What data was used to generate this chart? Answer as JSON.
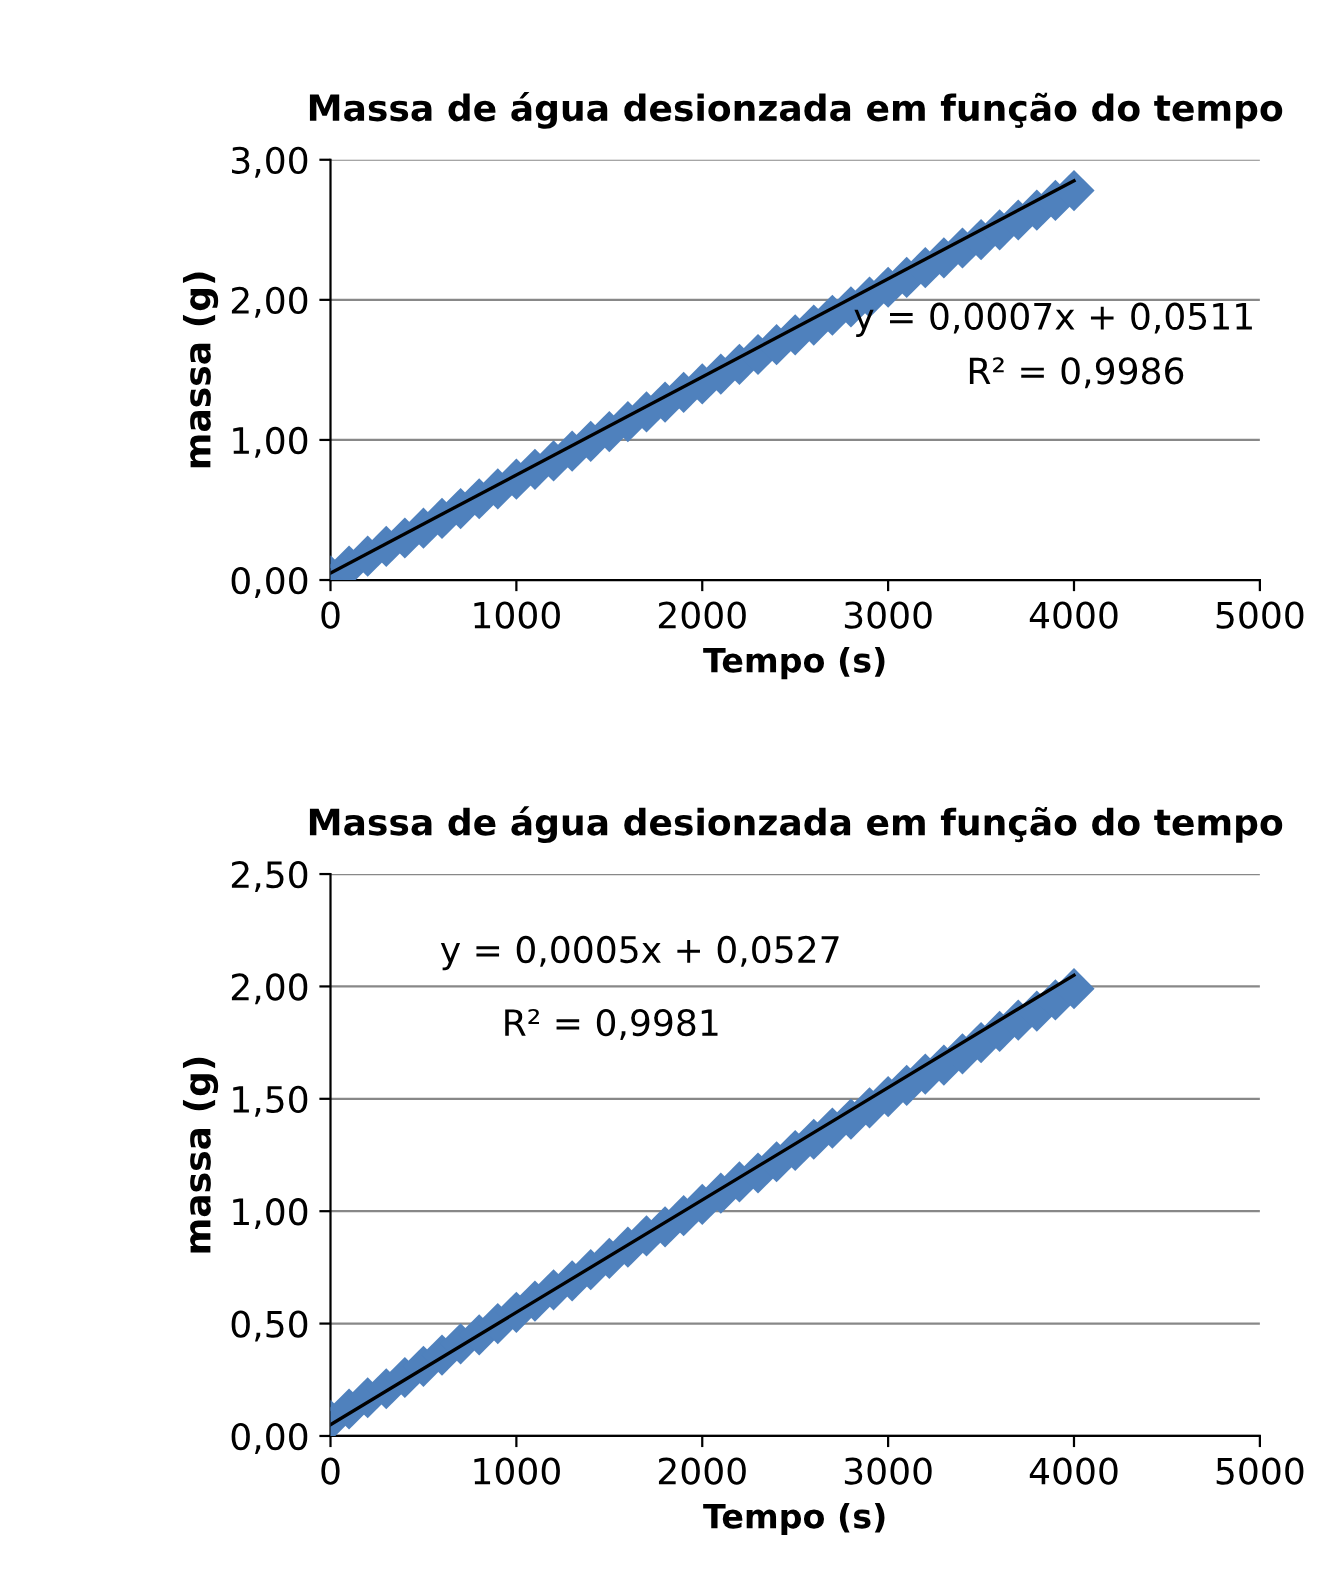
{
  "chart_data": [
    {
      "type": "scatter",
      "title": "Massa de água desionzada em função do tempo",
      "xlabel": "Tempo (s)",
      "ylabel": "massa (g)",
      "xlim": [
        0,
        5000
      ],
      "xticks": [
        0,
        1000,
        2000,
        3000,
        4000,
        5000
      ],
      "ylim": [
        0,
        3
      ],
      "yticks": [
        {
          "value": 0,
          "label": "0,00"
        },
        {
          "value": 1,
          "label": "1,00"
        },
        {
          "value": 2,
          "label": "2,00"
        },
        {
          "value": 3,
          "label": "3,00"
        }
      ],
      "grid": "y",
      "legend": false,
      "annotations": [
        "y = 0,0007x + 0,0511",
        "R² = 0,9986"
      ],
      "series": [
        {
          "marker": "diamond",
          "color": "#4f81bd",
          "x": [
            0,
            100,
            200,
            300,
            400,
            500,
            600,
            700,
            800,
            900,
            1000,
            1100,
            1200,
            1300,
            1400,
            1500,
            1600,
            1700,
            1800,
            1900,
            2000,
            2100,
            2200,
            2300,
            2400,
            2500,
            2600,
            2700,
            2800,
            2900,
            3000,
            3100,
            3200,
            3300,
            3400,
            3500,
            3600,
            3700,
            3800,
            3900,
            4000
          ],
          "values": [
            0.03,
            0.1,
            0.17,
            0.24,
            0.3,
            0.37,
            0.44,
            0.51,
            0.58,
            0.65,
            0.72,
            0.79,
            0.85,
            0.92,
            0.99,
            1.06,
            1.13,
            1.2,
            1.27,
            1.34,
            1.4,
            1.47,
            1.54,
            1.61,
            1.68,
            1.75,
            1.82,
            1.89,
            1.95,
            2.02,
            2.09,
            2.16,
            2.23,
            2.3,
            2.37,
            2.43,
            2.5,
            2.57,
            2.64,
            2.71,
            2.78
          ]
        },
        {
          "type": "line",
          "marker": "none",
          "color": "#000000",
          "x": [
            0,
            4000
          ],
          "values": [
            0.05,
            2.85
          ]
        }
      ]
    },
    {
      "type": "scatter",
      "title": "Massa de água desionzada em função do tempo",
      "xlabel": "Tempo (s)",
      "ylabel": "massa (g)",
      "xlim": [
        0,
        5000
      ],
      "xticks": [
        0,
        1000,
        2000,
        3000,
        4000,
        5000
      ],
      "ylim": [
        0,
        2.5
      ],
      "yticks": [
        {
          "value": 0,
          "label": "0,00"
        },
        {
          "value": 0.5,
          "label": "0,50"
        },
        {
          "value": 1,
          "label": "1,00"
        },
        {
          "value": 1.5,
          "label": "1,50"
        },
        {
          "value": 2,
          "label": "2,00"
        },
        {
          "value": 2.5,
          "label": "2,50"
        }
      ],
      "grid": "y",
      "legend": false,
      "annotations": [
        "y = 0,0005x + 0,0527",
        "R² = 0,9981"
      ],
      "series": [
        {
          "marker": "diamond",
          "color": "#4f81bd",
          "x": [
            0,
            100,
            200,
            300,
            400,
            500,
            600,
            700,
            800,
            900,
            1000,
            1100,
            1200,
            1300,
            1400,
            1500,
            1600,
            1700,
            1800,
            1900,
            2000,
            2100,
            2200,
            2300,
            2400,
            2500,
            2600,
            2700,
            2800,
            2900,
            3000,
            3100,
            3200,
            3300,
            3400,
            3500,
            3600,
            3700,
            3800,
            3900,
            4000
          ],
          "values": [
            0.07,
            0.12,
            0.17,
            0.21,
            0.26,
            0.31,
            0.36,
            0.41,
            0.45,
            0.5,
            0.55,
            0.6,
            0.65,
            0.69,
            0.74,
            0.79,
            0.84,
            0.89,
            0.93,
            0.98,
            1.03,
            1.08,
            1.13,
            1.17,
            1.22,
            1.27,
            1.32,
            1.37,
            1.41,
            1.46,
            1.51,
            1.56,
            1.61,
            1.65,
            1.7,
            1.75,
            1.8,
            1.85,
            1.89,
            1.94,
            1.99
          ]
        },
        {
          "type": "line",
          "marker": "none",
          "color": "#000000",
          "x": [
            0,
            4000
          ],
          "values": [
            0.05,
            2.05
          ]
        }
      ]
    }
  ]
}
